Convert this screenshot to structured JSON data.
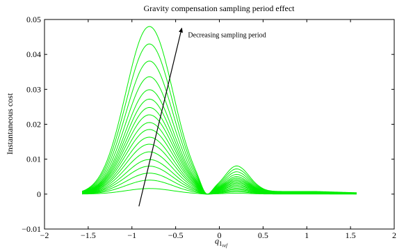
{
  "chart_data": {
    "type": "line",
    "title": "Gravity compensation sampling period effect",
    "xlabel_base": "q",
    "xlabel_subscript": "1",
    "xlabel_subsubscript": "ref",
    "ylabel": "Instantaneous cost",
    "xlim": [
      -2,
      2
    ],
    "ylim": [
      -0.01,
      0.05
    ],
    "xticks": [
      -2,
      -1.5,
      -1,
      -0.5,
      0,
      0.5,
      1,
      1.5,
      2
    ],
    "xtick_labels": [
      "−2",
      "−1.5",
      "−1",
      "−0.5",
      "0",
      "0.5",
      "1",
      "1.5",
      "2"
    ],
    "yticks": [
      -0.01,
      0,
      0.01,
      0.02,
      0.03,
      0.04,
      0.05
    ],
    "ytick_labels": [
      "−0.01",
      "0",
      "0.01",
      "0.02",
      "0.03",
      "0.04",
      "0.05"
    ],
    "grid": false,
    "series_color": "#00ee00",
    "x_range": [
      -1.57,
      1.57
    ],
    "peak_amplitudes": [
      0.0016,
      0.004,
      0.006,
      0.008,
      0.0099,
      0.0121,
      0.0143,
      0.0163,
      0.0185,
      0.0205,
      0.0227,
      0.0248,
      0.0272,
      0.0299,
      0.0336,
      0.0381,
      0.043,
      0.048
    ],
    "curve_shape": {
      "primary_peak": {
        "x": -0.8,
        "relative_height": 1.0
      },
      "dip": {
        "x": -0.15,
        "relative_depth": -0.06
      },
      "secondary_peak": {
        "x": 0.2,
        "relative_height": 0.167
      },
      "tail_level": {
        "x": 1.0,
        "relative_height": 0.016
      }
    },
    "annotation": {
      "text": "Decreasing sampling period",
      "arrow_from": [
        -0.92,
        -0.0035
      ],
      "arrow_to": [
        -0.43,
        0.0475
      ]
    }
  }
}
